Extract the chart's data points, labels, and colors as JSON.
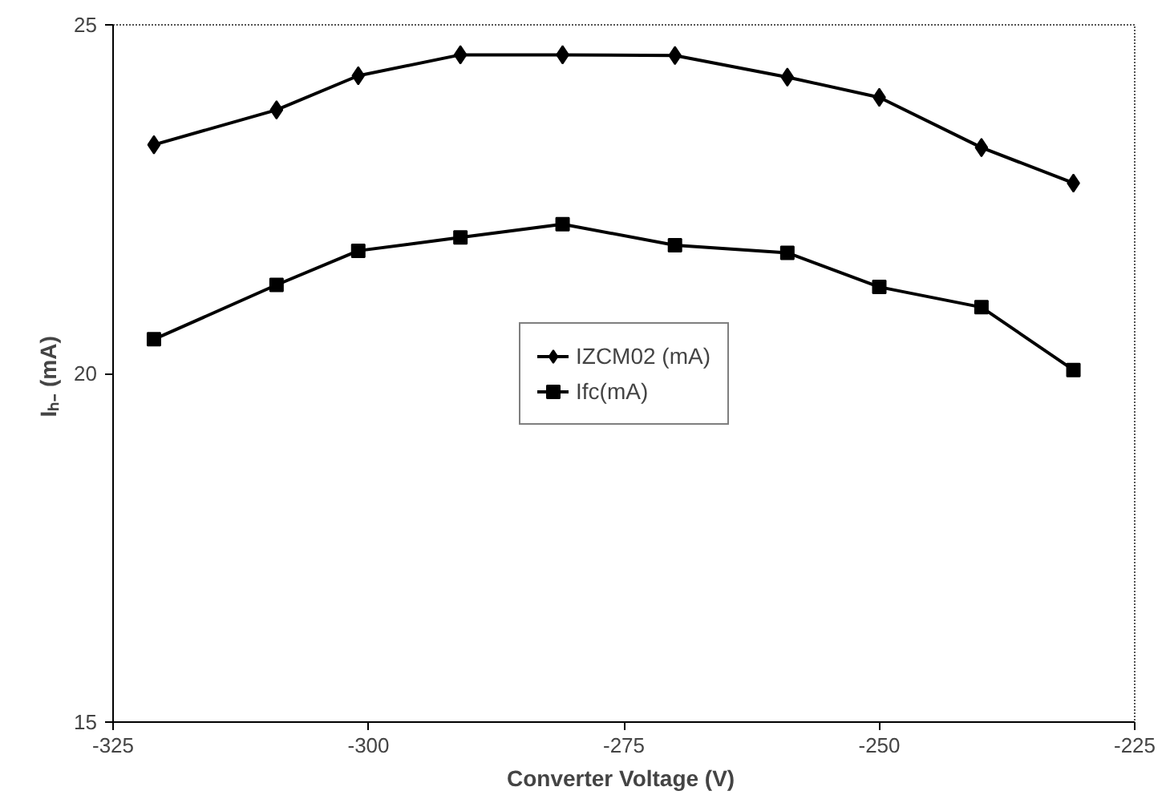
{
  "chart_data": {
    "type": "line",
    "xlabel": "Converter Voltage  (V)",
    "ylabel": "Iₕ₋  (mA)",
    "x": [
      -321,
      -309,
      -301,
      -291,
      -281,
      -270,
      -259,
      -250,
      -240,
      -231
    ],
    "series": [
      {
        "name": "IZCM02 (mA)",
        "color": "#000000",
        "marker": "diamond",
        "values": [
          23.28,
          23.78,
          24.27,
          24.57,
          24.57,
          24.56,
          24.25,
          23.96,
          23.24,
          22.73
        ]
      },
      {
        "name": "Ifc(mA)",
        "color": "#000000",
        "marker": "square",
        "values": [
          20.49,
          21.27,
          21.76,
          21.95,
          22.14,
          21.84,
          21.73,
          21.24,
          20.95,
          20.05
        ]
      }
    ],
    "xlim": [
      -325,
      -225
    ],
    "xticks": [
      -325,
      -300,
      -275,
      -250,
      -225
    ],
    "ylim": [
      15,
      25
    ],
    "yticks": [
      15,
      20,
      25
    ],
    "grid": false,
    "legend": "center",
    "line_style": "solid"
  }
}
